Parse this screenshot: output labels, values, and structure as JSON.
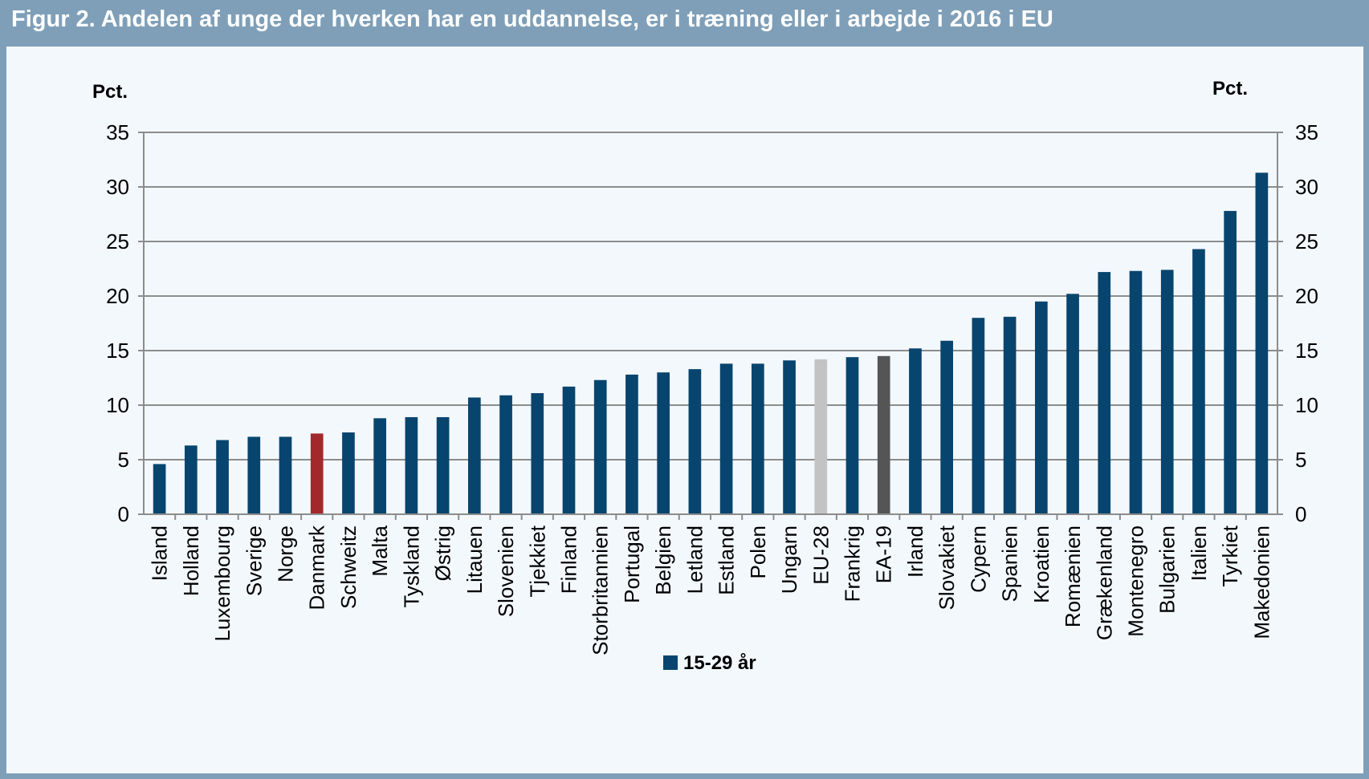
{
  "figure": {
    "title": "Figur 2. Andelen af unge der hverken har en uddannelse, er i træning eller i arbejde i 2016 i EU"
  },
  "colors": {
    "frame": "#7f9fb8",
    "panel_background": "#f3f8fd",
    "bar_default": "#08456e",
    "bar_denmark": "#a3282c",
    "bar_eu28": "#c3c3c3",
    "bar_ea19": "#555555"
  },
  "chart_data": {
    "type": "bar",
    "title": "",
    "ylabel_left": "Pct.",
    "ylabel_right": "Pct.",
    "xlabel": "",
    "ylim": [
      0,
      35
    ],
    "yticks": [
      0,
      5,
      10,
      15,
      20,
      25,
      30,
      35
    ],
    "grid": true,
    "legend_position": "bottom",
    "categories": [
      "Island",
      "Holland",
      "Luxembourg",
      "Sverige",
      "Norge",
      "Danmark",
      "Schweitz",
      "Malta",
      "Tyskland",
      "Østrig",
      "Litauen",
      "Slovenien",
      "Tjekkiet",
      "Finland",
      "Storbritannien",
      "Portugal",
      "Belgien",
      "Letland",
      "Estland",
      "Polen",
      "Ungarn",
      "EU-28",
      "Frankrig",
      "EA-19",
      "Irland",
      "Slovakiet",
      "Cypern",
      "Spanien",
      "Kroatien",
      "Romænien",
      "Grækenland",
      "Montenegro",
      "Bulgarien",
      "Italien",
      "Tyrkiet",
      "Makedonien"
    ],
    "series": [
      {
        "name": "15-29 år",
        "values": [
          4.6,
          6.3,
          6.8,
          7.1,
          7.1,
          7.4,
          7.5,
          8.8,
          8.9,
          8.9,
          10.7,
          10.9,
          11.1,
          11.7,
          12.3,
          12.8,
          13.0,
          13.3,
          13.8,
          13.8,
          14.1,
          14.2,
          14.4,
          14.5,
          15.2,
          15.9,
          18.0,
          18.1,
          19.5,
          20.2,
          22.2,
          22.3,
          22.4,
          24.3,
          27.8,
          31.3
        ]
      }
    ],
    "highlight": {
      "Danmark": "#a3282c",
      "EU-28": "#c3c3c3",
      "EA-19": "#555555"
    }
  }
}
